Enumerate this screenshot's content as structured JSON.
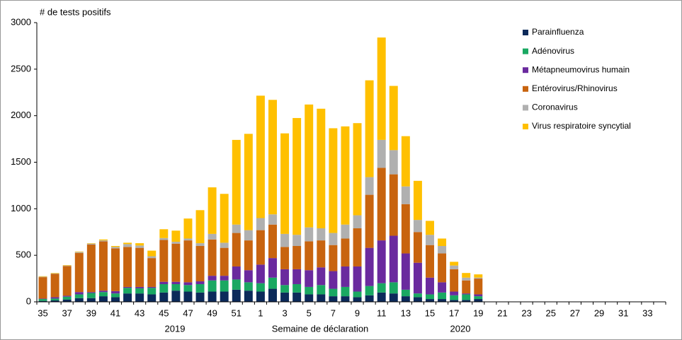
{
  "chart_data": {
    "type": "stacked_bar",
    "ylabel": "# de tests positifs",
    "xlabel": "Semaine de déclaration",
    "x_sublabels": [
      "2019",
      "2020"
    ],
    "categories": [
      "35",
      null,
      "37",
      null,
      "39",
      null,
      "41",
      null,
      "43",
      null,
      "45",
      null,
      "47",
      null,
      "49",
      null,
      "51",
      null,
      "1",
      null,
      "3",
      null,
      "5",
      null,
      "7",
      null,
      "9",
      null,
      "11",
      null,
      "13",
      null,
      "15",
      null,
      "17",
      null,
      "19",
      null,
      "21",
      null,
      "23",
      null,
      "25",
      null,
      "27",
      null,
      "29",
      null,
      "31",
      null,
      "33",
      null
    ],
    "ylim": [
      0,
      3000
    ],
    "yticks": [
      0,
      500,
      1000,
      1500,
      2000,
      2500,
      3000
    ],
    "grid": false,
    "legend": "upper right",
    "series": [
      {
        "name": "Parainfluenza",
        "color": "#0c2a5a",
        "values": [
          10,
          15,
          25,
          40,
          40,
          60,
          50,
          90,
          90,
          80,
          100,
          120,
          110,
          100,
          110,
          110,
          130,
          120,
          110,
          140,
          100,
          100,
          80,
          80,
          60,
          60,
          50,
          70,
          100,
          90,
          60,
          50,
          30,
          30,
          20,
          20,
          30,
          null,
          null,
          null,
          null,
          null,
          null,
          null,
          null,
          null,
          null,
          null,
          null,
          null,
          null,
          null
        ]
      },
      {
        "name": "Adénovirus",
        "color": "#1aa862",
        "values": [
          20,
          20,
          30,
          40,
          55,
          45,
          40,
          60,
          55,
          70,
          90,
          70,
          70,
          90,
          120,
          120,
          110,
          90,
          90,
          120,
          80,
          90,
          80,
          100,
          80,
          100,
          60,
          100,
          100,
          120,
          70,
          40,
          50,
          70,
          50,
          60,
          30,
          null,
          null,
          null,
          null,
          null,
          null,
          null,
          null,
          null,
          null,
          null,
          null,
          null,
          null,
          null
        ]
      },
      {
        "name": "Métapneumovirus humain",
        "color": "#6a2a9e",
        "values": [
          5,
          15,
          10,
          25,
          10,
          15,
          25,
          10,
          15,
          10,
          25,
          25,
          30,
          30,
          50,
          50,
          140,
          130,
          200,
          210,
          170,
          160,
          180,
          190,
          190,
          220,
          270,
          410,
          460,
          500,
          390,
          330,
          180,
          110,
          40,
          10,
          20,
          null,
          null,
          null,
          null,
          null,
          null,
          null,
          null,
          null,
          null,
          null,
          null,
          null,
          null,
          null
        ]
      },
      {
        "name": "Entérovirus/Rhinovirus",
        "color": "#c8640f",
        "values": [
          230,
          250,
          320,
          420,
          510,
          530,
          460,
          430,
          420,
          310,
          450,
          410,
          450,
          380,
          390,
          300,
          360,
          320,
          370,
          360,
          240,
          250,
          310,
          290,
          280,
          300,
          410,
          570,
          780,
          660,
          530,
          330,
          350,
          310,
          240,
          140,
          170,
          null,
          null,
          null,
          null,
          null,
          null,
          null,
          null,
          null,
          null,
          null,
          null,
          null,
          null,
          null
        ]
      },
      {
        "name": "Coronavirus",
        "color": "#b0b0b0",
        "values": [
          5,
          5,
          5,
          10,
          10,
          10,
          15,
          30,
          25,
          20,
          20,
          20,
          20,
          30,
          60,
          55,
          90,
          110,
          130,
          110,
          140,
          120,
          150,
          130,
          130,
          150,
          140,
          190,
          300,
          260,
          190,
          130,
          110,
          80,
          40,
          30,
          10,
          null,
          null,
          null,
          null,
          null,
          null,
          null,
          null,
          null,
          null,
          null,
          null,
          null,
          null,
          null
        ]
      },
      {
        "name": "Virus respiratoire syncytial",
        "color": "#ffc000",
        "values": [
          5,
          5,
          5,
          5,
          5,
          10,
          10,
          15,
          25,
          60,
          95,
          120,
          215,
          355,
          500,
          525,
          910,
          1035,
          1315,
          1230,
          1080,
          1255,
          1320,
          1285,
          1125,
          1055,
          990,
          1040,
          1100,
          690,
          540,
          420,
          150,
          80,
          40,
          50,
          35,
          null,
          null,
          null,
          null,
          null,
          null,
          null,
          null,
          null,
          null,
          null,
          null,
          null,
          null,
          null
        ]
      }
    ]
  }
}
